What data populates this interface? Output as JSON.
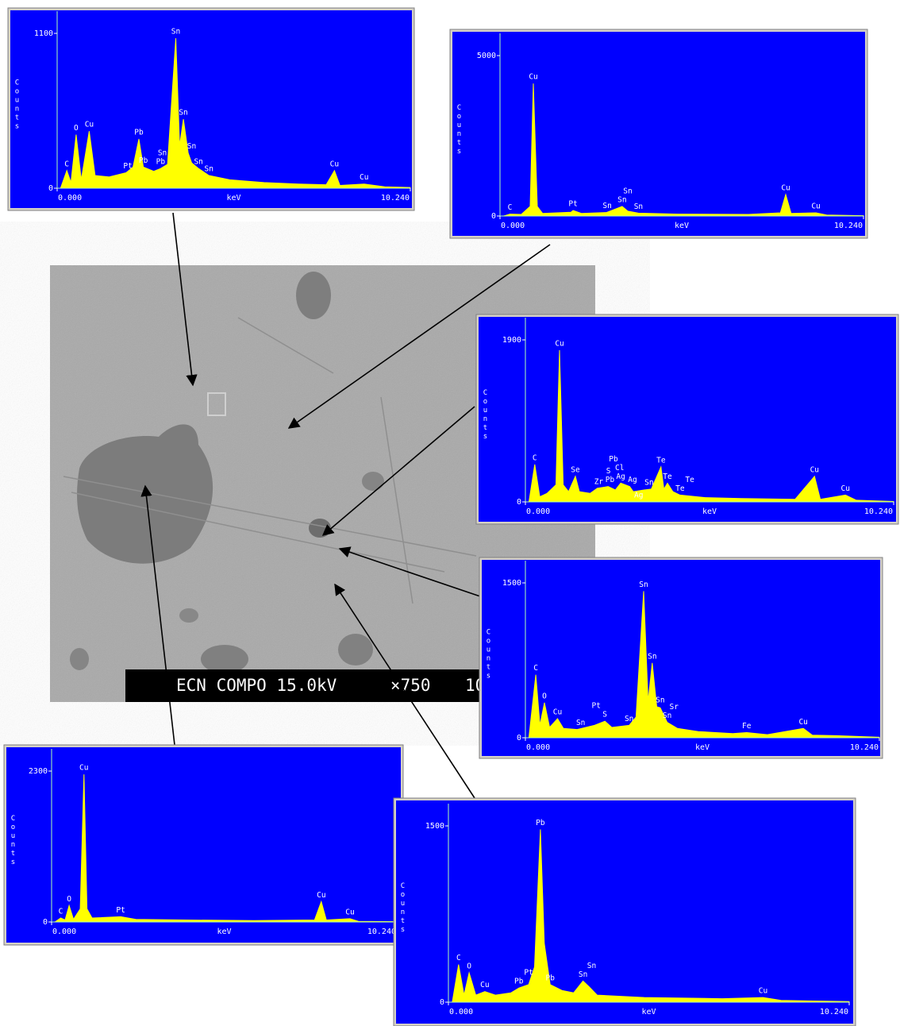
{
  "image": {
    "caption": [
      "ECN COMPO 15.0kV",
      "×750",
      "10"
    ]
  },
  "chart_data": [
    {
      "type": "area",
      "color": "#ffff00",
      "background": "#0000ff",
      "xlabel": "keV",
      "ylabel": "Counts",
      "xlim": [
        0,
        10.24
      ],
      "ylim": [
        0,
        1100
      ],
      "xticks": [
        {
          "value": 0,
          "label": "0.000"
        },
        {
          "value": 10.24,
          "label": "10.240"
        }
      ],
      "yticks": [
        0,
        1100
      ],
      "x": [
        0.1,
        0.28,
        0.4,
        0.55,
        0.7,
        0.93,
        1.1,
        1.5,
        2.0,
        2.2,
        2.37,
        2.5,
        2.8,
        3.0,
        3.2,
        3.44,
        3.55,
        3.66,
        3.8,
        3.9,
        4.1,
        4.4,
        5.0,
        6.0,
        7.0,
        7.8,
        8.04,
        8.2,
        8.9,
        9.5,
        10.24
      ],
      "values": [
        0,
        125,
        40,
        380,
        60,
        405,
        90,
        80,
        110,
        150,
        350,
        150,
        120,
        140,
        170,
        1065,
        300,
        490,
        250,
        180,
        140,
        90,
        60,
        40,
        30,
        25,
        125,
        20,
        30,
        10,
        5
      ],
      "peak_labels": [
        {
          "label": "C",
          "x": 0.28
        },
        {
          "label": "O",
          "x": 0.55
        },
        {
          "label": "Cu",
          "x": 0.93
        },
        {
          "label": "Pt",
          "x": 2.05
        },
        {
          "label": "Pb",
          "x": 2.37
        },
        {
          "label": "Pb",
          "x": 2.5
        },
        {
          "label": "Pb",
          "x": 3.0
        },
        {
          "label": "Sn",
          "x": 3.05
        },
        {
          "label": "Sn",
          "x": 3.44
        },
        {
          "label": "Sn",
          "x": 3.66
        },
        {
          "label": "Sn",
          "x": 3.9
        },
        {
          "label": "Sn",
          "x": 4.1
        },
        {
          "label": "Sn",
          "x": 4.4
        },
        {
          "label": "Cu",
          "x": 8.04
        },
        {
          "label": "Cu",
          "x": 8.9
        }
      ]
    },
    {
      "type": "area",
      "color": "#ffff00",
      "background": "#0000ff",
      "xlabel": "keV",
      "ylabel": "Counts",
      "xlim": [
        0,
        10.24
      ],
      "ylim": [
        0,
        5000
      ],
      "xticks": [
        {
          "value": 0,
          "label": "0.000"
        },
        {
          "value": 10.24,
          "label": "10.240"
        }
      ],
      "yticks": [
        0,
        5000
      ],
      "x": [
        0.1,
        0.28,
        0.6,
        0.85,
        0.94,
        1.05,
        1.2,
        2.0,
        2.06,
        2.3,
        3.0,
        3.44,
        3.6,
        3.9,
        5.0,
        7.0,
        7.9,
        8.05,
        8.2,
        8.9,
        9.2,
        10.24
      ],
      "values": [
        0,
        60,
        50,
        300,
        4130,
        300,
        80,
        120,
        170,
        80,
        110,
        300,
        150,
        90,
        60,
        50,
        100,
        670,
        80,
        100,
        30,
        10
      ],
      "peak_labels": [
        {
          "label": "Cu",
          "x": 0.94
        },
        {
          "label": "C",
          "x": 0.28
        },
        {
          "label": "Pt",
          "x": 2.06
        },
        {
          "label": "Sn",
          "x": 3.02
        },
        {
          "label": "Sn",
          "x": 3.44
        },
        {
          "label": "Sn",
          "x": 3.6
        },
        {
          "label": "Sn",
          "x": 3.9
        },
        {
          "label": "Cu",
          "x": 8.05
        },
        {
          "label": "Cu",
          "x": 8.9
        }
      ]
    },
    {
      "type": "area",
      "color": "#ffff00",
      "background": "#0000ff",
      "xlabel": "keV",
      "ylabel": "Counts",
      "xlim": [
        0,
        10.24
      ],
      "ylim": [
        0,
        1900
      ],
      "xticks": [
        {
          "value": 0,
          "label": "0.000"
        },
        {
          "value": 10.24,
          "label": "10.240"
        }
      ],
      "yticks": [
        0,
        1900
      ],
      "x": [
        0.1,
        0.26,
        0.4,
        0.6,
        0.85,
        0.95,
        1.05,
        1.2,
        1.39,
        1.5,
        1.8,
        2.0,
        2.3,
        2.5,
        2.65,
        2.9,
        3.0,
        3.3,
        3.5,
        3.77,
        3.85,
        3.95,
        4.1,
        4.3,
        5.0,
        6.0,
        7.5,
        8.04,
        8.2,
        8.9,
        9.2,
        10.24
      ],
      "values": [
        0,
        440,
        60,
        100,
        200,
        1780,
        200,
        120,
        300,
        120,
        100,
        160,
        180,
        140,
        220,
        180,
        120,
        140,
        150,
        410,
        150,
        220,
        120,
        80,
        50,
        40,
        30,
        300,
        30,
        80,
        20,
        5
      ],
      "peak_labels": [
        {
          "label": "Cu",
          "x": 0.95
        },
        {
          "label": "C",
          "x": 0.26
        },
        {
          "label": "Se",
          "x": 1.39
        },
        {
          "label": "Pb",
          "x": 2.35
        },
        {
          "label": "Ag",
          "x": 2.65
        },
        {
          "label": "Ag",
          "x": 2.98
        },
        {
          "label": "Zr",
          "x": 2.04
        },
        {
          "label": "S",
          "x": 2.31
        },
        {
          "label": "Cl",
          "x": 2.62
        },
        {
          "label": "Pb",
          "x": 2.45
        },
        {
          "label": "Ag",
          "x": 3.15
        },
        {
          "label": "Sn",
          "x": 3.44
        },
        {
          "label": "Te",
          "x": 3.77
        },
        {
          "label": "Te",
          "x": 3.95
        },
        {
          "label": "Te",
          "x": 4.3
        },
        {
          "label": "Te",
          "x": 4.57
        },
        {
          "label": "Cu",
          "x": 8.04
        },
        {
          "label": "Cu",
          "x": 8.9
        }
      ]
    },
    {
      "type": "area",
      "color": "#ffff00",
      "background": "#0000ff",
      "xlabel": "keV",
      "ylabel": "Counts",
      "xlim": [
        0,
        10.24
      ],
      "ylim": [
        0,
        1500
      ],
      "xticks": [
        {
          "value": 0,
          "label": "0.000"
        },
        {
          "value": 10.24,
          "label": "10.240"
        }
      ],
      "yticks": [
        0,
        1500
      ],
      "x": [
        0.1,
        0.3,
        0.42,
        0.55,
        0.7,
        0.93,
        1.1,
        1.5,
        2.0,
        2.3,
        2.5,
        3.0,
        3.2,
        3.42,
        3.55,
        3.67,
        3.8,
        3.9,
        4.1,
        4.4,
        5.0,
        6.0,
        6.4,
        7.0,
        8.04,
        8.3,
        9.0,
        10.24
      ],
      "values": [
        0,
        610,
        120,
        340,
        100,
        185,
        90,
        80,
        120,
        160,
        100,
        120,
        200,
        1420,
        350,
        725,
        300,
        290,
        150,
        90,
        60,
        40,
        50,
        30,
        90,
        25,
        20,
        5
      ],
      "peak_labels": [
        {
          "label": "Sn",
          "x": 3.42
        },
        {
          "label": "Sn",
          "x": 3.67
        },
        {
          "label": "C",
          "x": 0.3
        },
        {
          "label": "O",
          "x": 0.55
        },
        {
          "label": "Cu",
          "x": 0.93
        },
        {
          "label": "S",
          "x": 2.3
        },
        {
          "label": "Sn",
          "x": 1.6
        },
        {
          "label": "Pt",
          "x": 2.05
        },
        {
          "label": "Sn",
          "x": 3.0
        },
        {
          "label": "Sn",
          "x": 3.9
        },
        {
          "label": "Sn",
          "x": 4.1
        },
        {
          "label": "Sr",
          "x": 4.3
        },
        {
          "label": "Fe",
          "x": 6.4
        },
        {
          "label": "Cu",
          "x": 8.04
        }
      ]
    },
    {
      "type": "area",
      "color": "#ffff00",
      "background": "#0000ff",
      "xlabel": "keV",
      "ylabel": "Counts",
      "xlim": [
        0,
        10.24
      ],
      "ylim": [
        0,
        2300
      ],
      "xticks": [
        {
          "value": 0,
          "label": "0.000"
        },
        {
          "value": 10.24,
          "label": "10.240"
        }
      ],
      "yticks": [
        0,
        2300
      ],
      "x": [
        0.1,
        0.27,
        0.4,
        0.52,
        0.65,
        0.85,
        0.96,
        1.05,
        1.2,
        2.05,
        2.5,
        4.0,
        6.0,
        7.8,
        8.0,
        8.15,
        8.85,
        9.1,
        10.24
      ],
      "values": [
        0,
        60,
        30,
        250,
        40,
        200,
        2250,
        200,
        60,
        80,
        40,
        30,
        20,
        30,
        310,
        30,
        50,
        10,
        5
      ],
      "peak_labels": [
        {
          "label": "Cu",
          "x": 0.96
        },
        {
          "label": "C",
          "x": 0.27
        },
        {
          "label": "O",
          "x": 0.52
        },
        {
          "label": "Pt",
          "x": 2.05
        },
        {
          "label": "Cu",
          "x": 8.0
        },
        {
          "label": "Cu",
          "x": 8.85
        }
      ]
    },
    {
      "type": "area",
      "color": "#ffff00",
      "background": "#0000ff",
      "xlabel": "keV",
      "ylabel": "Counts",
      "xlim": [
        0,
        10.24
      ],
      "ylim": [
        0,
        1500
      ],
      "xticks": [
        {
          "value": 0,
          "label": "0.000"
        },
        {
          "value": 10.24,
          "label": "10.240"
        }
      ],
      "yticks": [
        0,
        1500
      ],
      "x": [
        0.1,
        0.26,
        0.4,
        0.53,
        0.7,
        0.93,
        1.2,
        1.6,
        1.8,
        2.05,
        2.2,
        2.35,
        2.45,
        2.6,
        2.9,
        3.2,
        3.44,
        3.6,
        3.8,
        5.0,
        7.0,
        8.04,
        8.5,
        10.24
      ],
      "values": [
        0,
        320,
        60,
        250,
        60,
        90,
        60,
        80,
        120,
        150,
        300,
        1470,
        500,
        150,
        100,
        80,
        180,
        130,
        60,
        40,
        30,
        40,
        15,
        5
      ],
      "peak_labels": [
        {
          "label": "Pb",
          "x": 2.35
        },
        {
          "label": "C",
          "x": 0.26
        },
        {
          "label": "O",
          "x": 0.53
        },
        {
          "label": "Cu",
          "x": 0.93
        },
        {
          "label": "Pb",
          "x": 1.8
        },
        {
          "label": "Pt",
          "x": 2.05
        },
        {
          "label": "Pb",
          "x": 2.6
        },
        {
          "label": "Sn",
          "x": 3.44
        },
        {
          "label": "Sn",
          "x": 3.66
        },
        {
          "label": "Cu",
          "x": 8.04
        }
      ]
    }
  ]
}
